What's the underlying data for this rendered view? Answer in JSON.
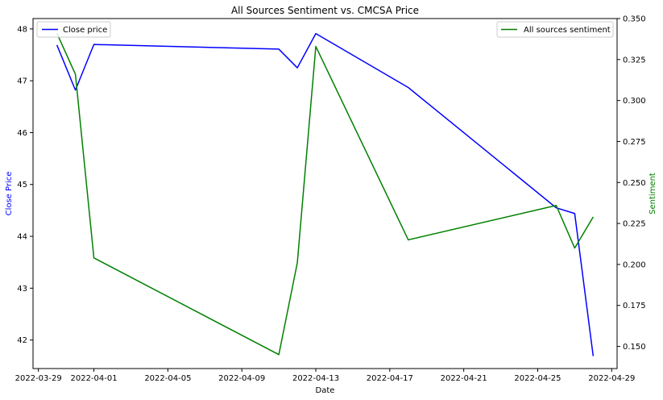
{
  "chart_data": {
    "type": "line",
    "title": "All Sources Sentiment vs. CMCSA Price",
    "xlabel": "Date",
    "ylabel_left": "Close Price",
    "ylabel_right": "Sentiment",
    "x_ticks": [
      "2022-03-29",
      "2022-04-01",
      "2022-04-05",
      "2022-04-09",
      "2022-04-13",
      "2022-04-17",
      "2022-04-21",
      "2022-04-25",
      "2022-04-29"
    ],
    "left_ticks": [
      42,
      43,
      44,
      45,
      46,
      47,
      48
    ],
    "right_ticks": [
      "0.150",
      "0.175",
      "0.200",
      "0.225",
      "0.250",
      "0.275",
      "0.300",
      "0.325",
      "0.350"
    ],
    "xlim": [
      "2022-03-28 17:00",
      "2022-04-29 07:00"
    ],
    "ylim_left": [
      41.45,
      48.2
    ],
    "ylim_right": [
      0.1365,
      0.35
    ],
    "legend_left": "upper-left",
    "legend_right": "upper-right",
    "grid": false,
    "series": [
      {
        "name": "Close price",
        "axis": "left",
        "color": "#0000ff",
        "x": [
          "2022-03-30",
          "2022-03-31",
          "2022-04-01",
          "2022-04-11",
          "2022-04-12",
          "2022-04-13",
          "2022-04-18",
          "2022-04-26",
          "2022-04-27",
          "2022-04-28"
        ],
        "y": [
          47.69,
          46.82,
          47.7,
          47.61,
          47.25,
          47.91,
          46.87,
          44.55,
          44.44,
          41.69
        ]
      },
      {
        "name": "All sources sentiment",
        "axis": "right",
        "color": "#008000",
        "x": [
          "2022-03-30",
          "2022-03-31",
          "2022-04-01",
          "2022-04-11",
          "2022-04-12",
          "2022-04-13",
          "2022-04-18",
          "2022-04-26",
          "2022-04-27",
          "2022-04-28"
        ],
        "y": [
          0.341,
          0.316,
          0.204,
          0.145,
          0.201,
          0.333,
          0.215,
          0.236,
          0.21,
          0.229
        ]
      }
    ]
  }
}
